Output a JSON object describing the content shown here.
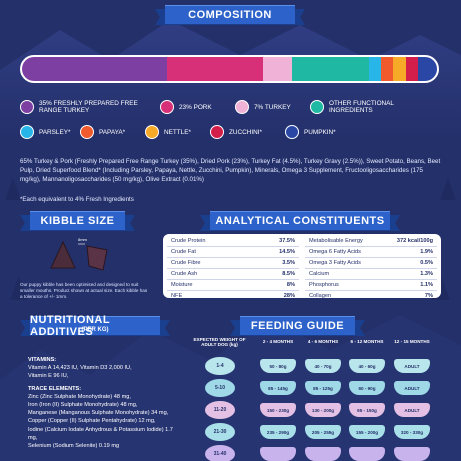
{
  "composition": {
    "title": "COMPOSITION",
    "bar": [
      {
        "name": "pork-turkey",
        "pct": 35,
        "color": "#7e3fa3"
      },
      {
        "name": "pork",
        "pct": 23,
        "color": "#d73078"
      },
      {
        "name": "turkey",
        "pct": 7,
        "color": "#f0b2d6"
      },
      {
        "name": "other",
        "pct": 18.5,
        "color": "#1fb8a2"
      },
      {
        "name": "parsley",
        "pct": 3,
        "color": "#28b6e8"
      },
      {
        "name": "papaya",
        "pct": 3,
        "color": "#f05a2c"
      },
      {
        "name": "nettle",
        "pct": 3,
        "color": "#f7a928"
      },
      {
        "name": "zucchini",
        "pct": 3,
        "color": "#d31d4b"
      },
      {
        "name": "pumpkin",
        "pct": 4.5,
        "color": "#2b47a5"
      }
    ],
    "legend": [
      {
        "label": "35% FRESHLY PREPARED FREE RANGE TURKEY",
        "color": "#7e3fa3"
      },
      {
        "label": "23% PORK",
        "color": "#d73078"
      },
      {
        "label": "7% TURKEY",
        "color": "#f0b2d6"
      },
      {
        "label": "OTHER FUNCTIONAL INGREDIENTS",
        "color": "#1fb8a2"
      },
      {
        "label": "PARSLEY*",
        "color": "#28b6e8"
      },
      {
        "label": "PAPAYA*",
        "color": "#f05a2c"
      },
      {
        "label": "NETTLE*",
        "color": "#f7a928"
      },
      {
        "label": "ZUCCHINI*",
        "color": "#d31d4b"
      },
      {
        "label": "PUMPKIN*",
        "color": "#2b47a5"
      }
    ],
    "ingredients": "65% Turkey & Pork (Freshly Prepared Free Range Turkey (35%), Dried Pork (23%), Turkey Fat (4.5%), Turkey Gravy (2.5%)), Sweet Potato, Beans, Beet Pulp, Dried Superfood Blend* (Including Parsley, Papaya, Nettle, Zucchini, Pumpkin), Minerals, Omega 3 Supplement, Fructooligosaccharides (175 mg/kg), Mannanoligosaccharides (50 mg/kg), Olive Extract (0.01%)",
    "footnote": "*Each equivalent to 4% Fresh Ingredients"
  },
  "kibble": {
    "title": "KIBBLE SIZE",
    "size_label": "8mm",
    "note": "Our puppy kibble has been optimised and designed to suit smaller mouths. Product shown at actual size. Each kibble has a tolerance of +/- 1mm."
  },
  "analytical": {
    "title": "ANALYTICAL CONSTITUENTS",
    "left": [
      {
        "label": "Crude Protein",
        "value": "37.5%"
      },
      {
        "label": "Crude Fat",
        "value": "14.5%"
      },
      {
        "label": "Crude Fibre",
        "value": "3.5%"
      },
      {
        "label": "Crude Ash",
        "value": "8.5%"
      },
      {
        "label": "Moisture",
        "value": "8%"
      },
      {
        "label": "NFE",
        "value": "28%"
      }
    ],
    "right": [
      {
        "label": "Metabolisable Energy",
        "value": "372 kcal/100g"
      },
      {
        "label": "Omega 6 Fatty Acids",
        "value": "1.9%"
      },
      {
        "label": "Omega 3 Fatty Acids",
        "value": "0.5%"
      },
      {
        "label": "Calcium",
        "value": "1.3%"
      },
      {
        "label": "Phosphorus",
        "value": "1.1%"
      },
      {
        "label": "Collagen",
        "value": "7%"
      }
    ]
  },
  "additives": {
    "title": "NUTRITIONAL ADDITIVES",
    "subtitle": "(PER KG)",
    "vitamins_head": "VITAMINS:",
    "vitamins": [
      "Vitamin A 14,423 IU, Vitamin D3 2,000 IU,",
      "Vitamin E 96 IU,"
    ],
    "trace_head": "TRACE ELEMENTS:",
    "trace": [
      "Zinc (Zinc Sulphate Monohydrate) 48 mg,",
      "Iron (Iron (II) Sulphate Monohydrate) 48 mg,",
      "Manganese (Manganous Sulphate Monohydrate) 34 mg,",
      "Copper (Copper (II) Sulphate Pentahydrate) 12 mg,",
      "Iodine (Calcium Iodate Anhydrous & Potassium Iodide) 1.7 mg,",
      "Selenium (Sodium Selenite) 0.19 mg"
    ]
  },
  "feeding": {
    "title": "FEEDING GUIDE",
    "col_weight": "EXPECTED WEIGHT OF ADULT DOG (kg)",
    "cols": [
      "2 - 4 MONTHS",
      "4 - 6 MONTHS",
      "6 - 12 MONTHS",
      "12 - 15 MONTHS"
    ],
    "rows": [
      {
        "weight": "1-4",
        "color": "#b9e6ec",
        "cells": [
          "50 - 80g",
          "40 - 70g",
          "40 - 60g",
          "ADULT"
        ]
      },
      {
        "weight": "5-10",
        "color": "#9fd8e6",
        "cells": [
          "85 - 145g",
          "85 - 125g",
          "60 - 90g",
          "ADULT"
        ]
      },
      {
        "weight": "11-20",
        "color": "#e3c0e4",
        "cells": [
          "150 - 230g",
          "130 - 200g",
          "95 - 150g",
          "ADULT"
        ]
      },
      {
        "weight": "21-30",
        "color": "#a8dfe8",
        "cells": [
          "235 - 290g",
          "205 - 255g",
          "155 - 200g",
          "320 - 330g"
        ]
      },
      {
        "weight": "31-40",
        "color": "#c9b3ec",
        "cells": [
          "",
          "",
          "",
          ""
        ]
      }
    ]
  }
}
